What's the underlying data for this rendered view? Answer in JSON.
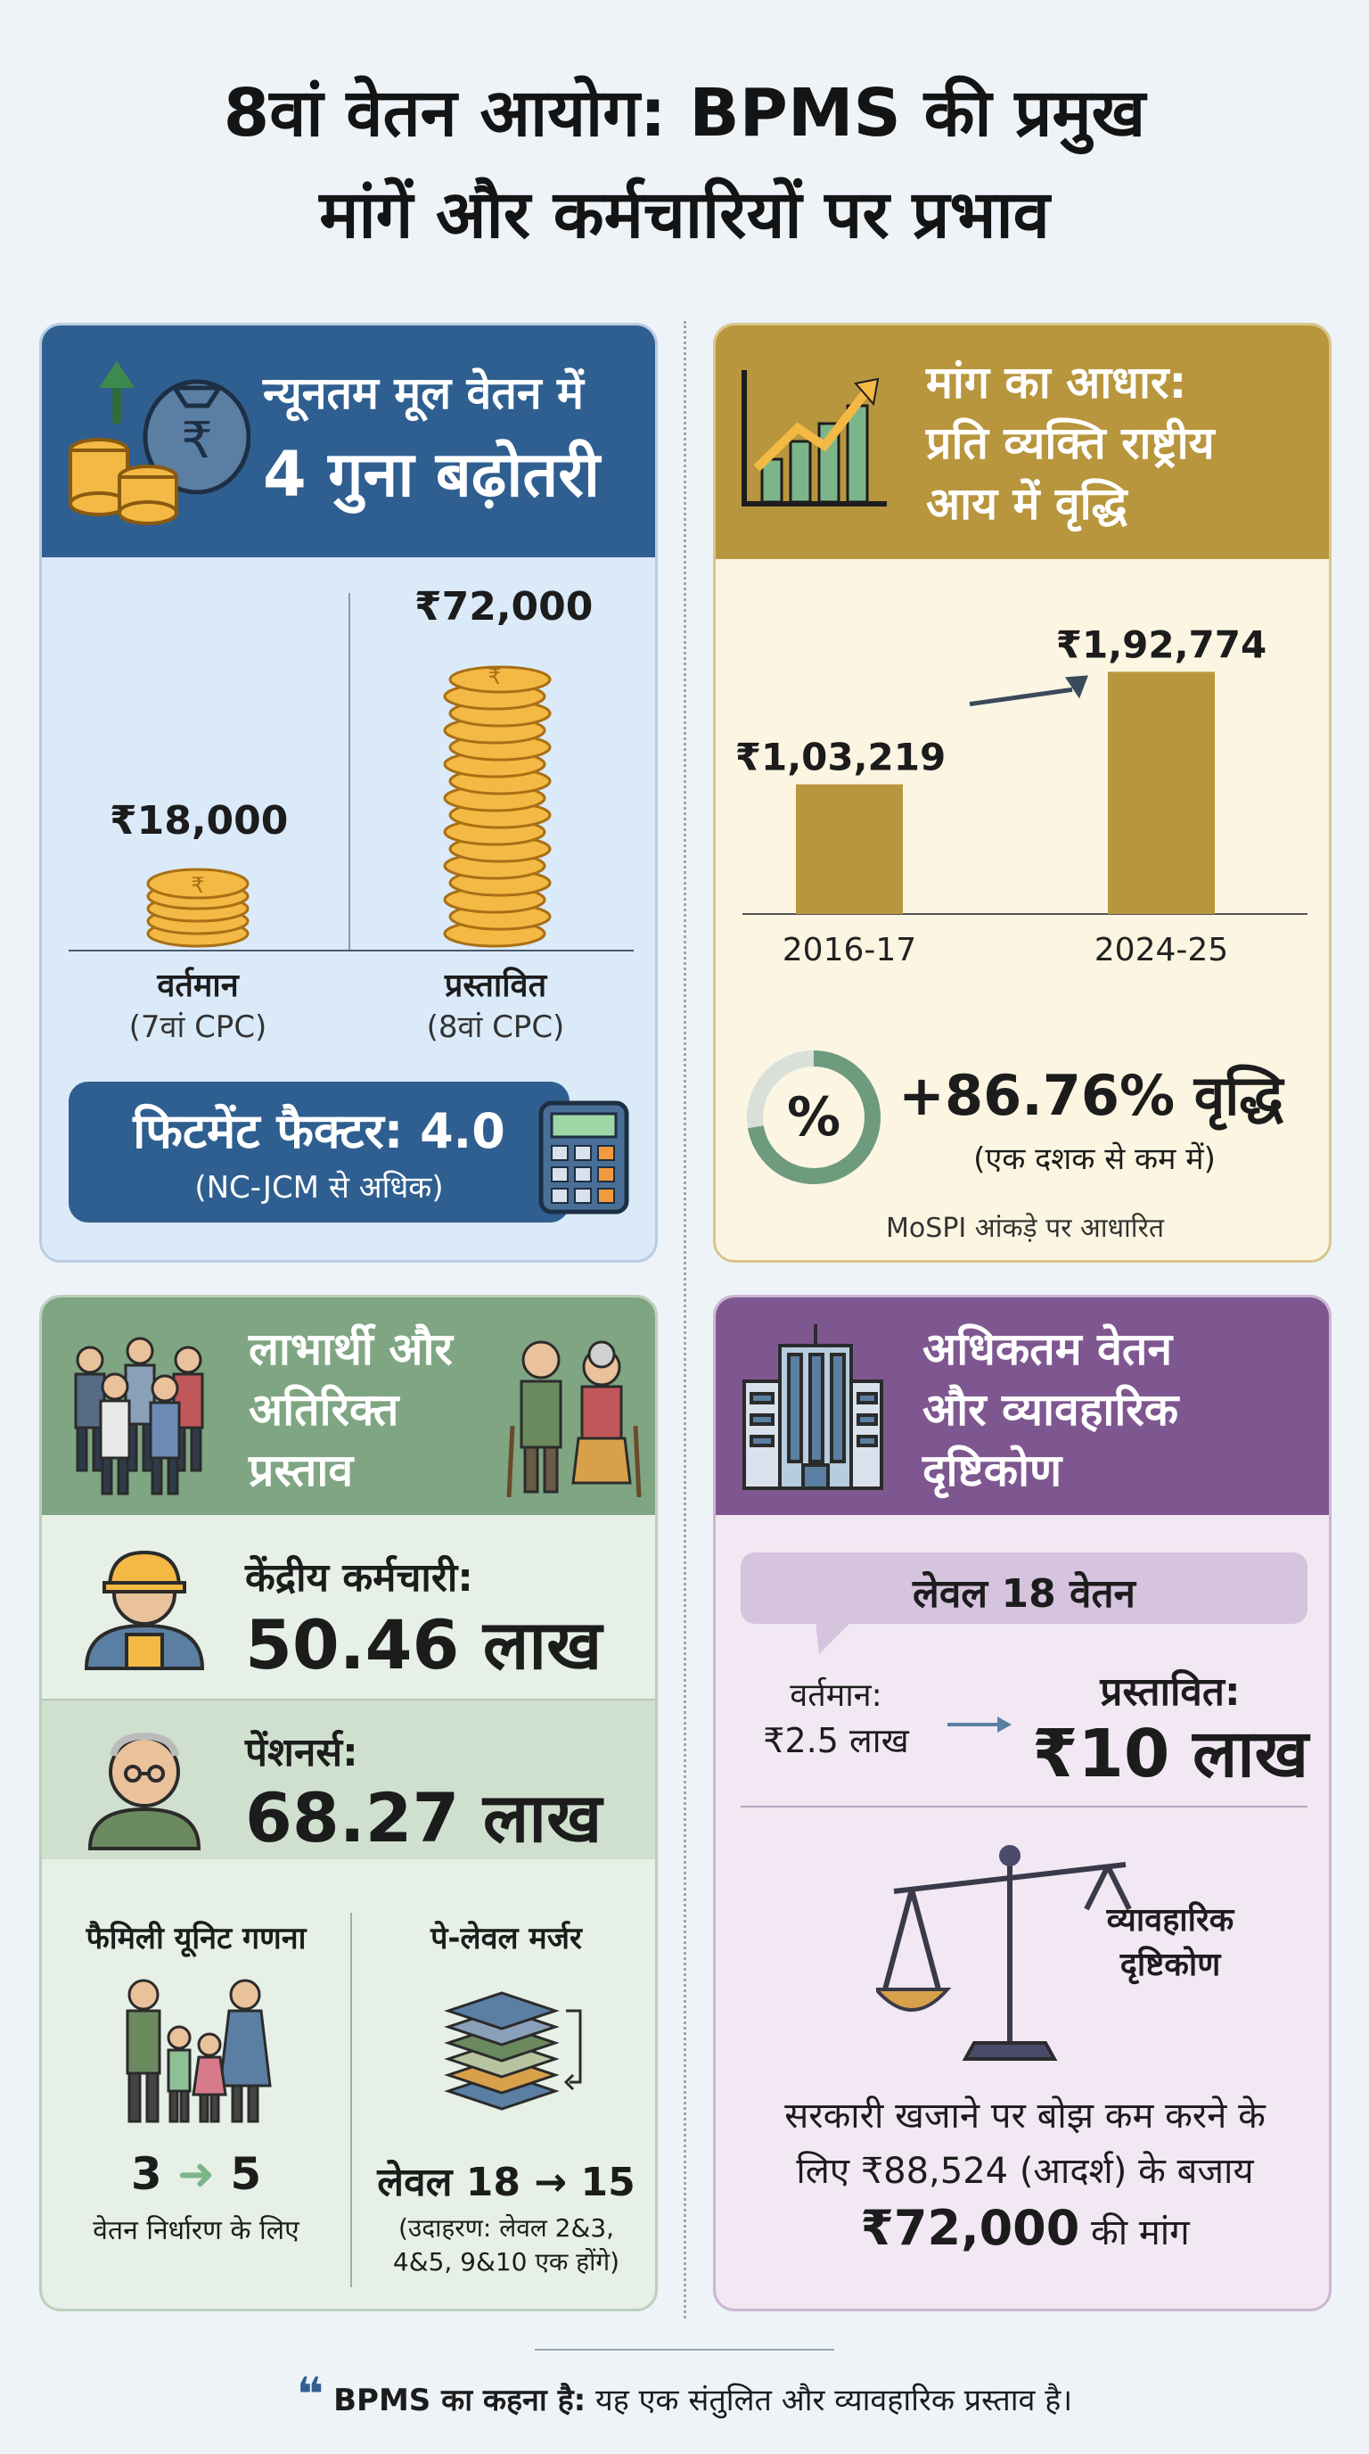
{
  "title_line1": "8वां वेतन आयोग: BPMS की प्रमुख",
  "title_line2": "मांगें और कर्मचारियों पर प्रभाव",
  "card_basic_pay": {
    "heading_line1": "न्यूनतम मूल वेतन में",
    "heading_line2": "4 गुना बढ़ोतरी",
    "current_amount": "₹18,000",
    "proposed_amount": "₹72,000",
    "current_label": "वर्तमान",
    "current_sub": "(7वां CPC)",
    "proposed_label": "प्रस्तावित",
    "proposed_sub": "(8वां CPC)",
    "fitment_title": "फिटमेंट फैक्टर: 4.0",
    "fitment_sub": "(NC-JCM से अधिक)",
    "icons": [
      "coins-icon",
      "money-bag-icon",
      "calculator-icon"
    ]
  },
  "card_income": {
    "heading_line1": "मांग का आधार:",
    "heading_line2": "प्रति व्यक्ति राष्ट्रीय",
    "heading_line3": "आय में वृद्धि",
    "growth_value": "+86.76% वृद्धि",
    "growth_sub": "(एक दशक से कम में)",
    "source_note": "MoSPI आंकड़े पर आधारित",
    "percent_symbol": "%",
    "accent_color": "#b8963e"
  },
  "chart_data": {
    "type": "bar",
    "categories": [
      "2016-17",
      "2024-25"
    ],
    "values": [
      103219,
      192774
    ],
    "value_labels": [
      "₹1,03,219",
      "₹1,92,774"
    ],
    "ylim": [
      0,
      220000
    ],
    "grid": false
  },
  "card_beneficiaries": {
    "heading_line1": "लाभार्थी और",
    "heading_line2": "अतिरिक्त",
    "heading_line3": "प्रस्ताव",
    "employees_label": "केंद्रीय कर्मचारी:",
    "employees_value": "50.46 लाख",
    "pensioners_label": "पेंशनर्स:",
    "pensioners_value": "68.27 लाख",
    "family_title": "फैमिली यूनिट गणना",
    "family_from": "3",
    "family_to": "5",
    "family_note": "वेतन निर्धारण के लिए",
    "merger_title": "पे-लेवल मर्जर",
    "merger_text": "लेवल 18 → 15",
    "merger_note_line1": "(उदाहरण: लेवल 2&3,",
    "merger_note_line2": "4&5, 9&10 एक होंगे)"
  },
  "card_max_pay": {
    "heading_line1": "अधिकतम वेतन",
    "heading_line2": "और व्यावहारिक",
    "heading_line3": "दृष्टिकोण",
    "level_title": "लेवल 18 वेतन",
    "current_label": "वर्तमान:",
    "current_value": "₹2.5 लाख",
    "proposed_label": "प्रस्तावित:",
    "proposed_value": "₹10 लाख",
    "scale_label_line1": "व्यावहारिक",
    "scale_label_line2": "दृष्टिकोण",
    "note_line1": "सरकारी खजाने पर बोझ कम करने के",
    "note_line2": "लिए ₹88,524 (आदर्श) के बजाय",
    "note_line3_bold": "₹72,000",
    "note_line3_rest": " की मांग"
  },
  "footer": {
    "quote_mark": "❝",
    "bold": "BPMS का कहना है:",
    "text": " यह एक संतुलित और व्यावहारिक प्रस्ताव है।"
  }
}
